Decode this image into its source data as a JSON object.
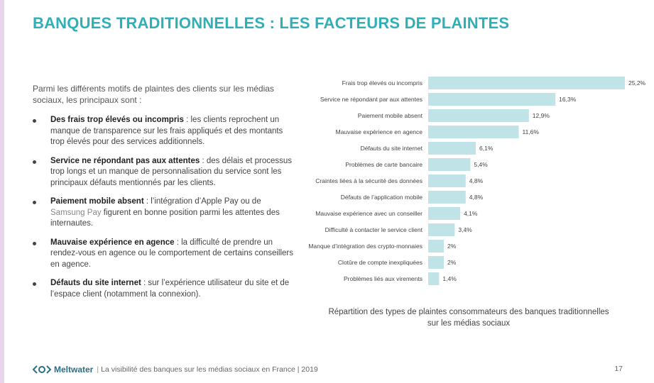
{
  "title": "BANQUES TRADITIONNELLES : LES FACTEURS DE PLAINTES",
  "intro": "Parmi les différents motifs de plaintes des clients sur les médias sociaux, les principaux sont :",
  "bullets": [
    {
      "term": "Des frais trop élevés ou incompris",
      "text": " : les clients reprochent un manque de transparence sur les frais appliqués et des montants trop élevés pour des services additionnels."
    },
    {
      "term": "Service ne répondant pas aux attentes",
      "text": " : des délais et processus trop longs et un manque de personnalisation du service sont les principaux défauts mentionnés par les clients."
    },
    {
      "term": "Paiement mobile absent",
      "text_before": " : l’intégration d’Apple Pay ou de ",
      "highlight": "Samsung Pay",
      "text_after": " figurent en bonne position parmi les attentes des internautes."
    },
    {
      "term": "Mauvaise expérience en agence",
      "text": " : la difficulté de prendre un rendez-vous en agence ou le comportement de certains conseillers en agence."
    },
    {
      "term": "Défauts du site internet",
      "text": " : sur l’expérience utilisateur du site et de l’espace client (notamment la connexion)."
    }
  ],
  "chart_data": {
    "type": "bar",
    "orientation": "horizontal",
    "categories": [
      "Frais trop élevés ou incompris",
      "Service ne répondant par aux attentes",
      "Paiement mobile absent",
      "Mauvaise expérience en agence",
      "Défauts du site internet",
      "Problèmes de carte bancaire",
      "Craintes liées à la sécurité des données",
      "Défauts de l’application mobile",
      "Mauvaise expérience avec un conseiller",
      "Difficulté à contacter le service client",
      "Manque d’intégration des crypto-monnaies",
      "Clotûre de compte inexpliquées",
      "Problèmes liés aux virements"
    ],
    "values": [
      25.2,
      16.3,
      12.9,
      11.6,
      6.1,
      5.4,
      4.8,
      4.8,
      4.1,
      3.4,
      2,
      2,
      1.4
    ],
    "labels": [
      "25,2%",
      "16,3%",
      "12,9%",
      "11,6%",
      "6,1%",
      "5,4%",
      "4,8%",
      "4,8%",
      "4,1%",
      "3,4%",
      "2%",
      "2%",
      "1,4%"
    ],
    "xlim": [
      0,
      25.2
    ],
    "bar_color": "#bfe3e7",
    "title": "",
    "xlabel": "",
    "ylabel": ""
  },
  "caption": {
    "line1": "Répartition des types de plaintes consommateurs des banques traditionnelles",
    "line2": "sur les médias sociaux"
  },
  "footer": {
    "brand": "Meltwater",
    "text": "La visibilité des banques sur les médias sociaux en France | 2019",
    "page": "17"
  },
  "colors": {
    "title": "#2fb0b8",
    "brand": "#2a6f86",
    "stripe": "#ead6ea"
  }
}
